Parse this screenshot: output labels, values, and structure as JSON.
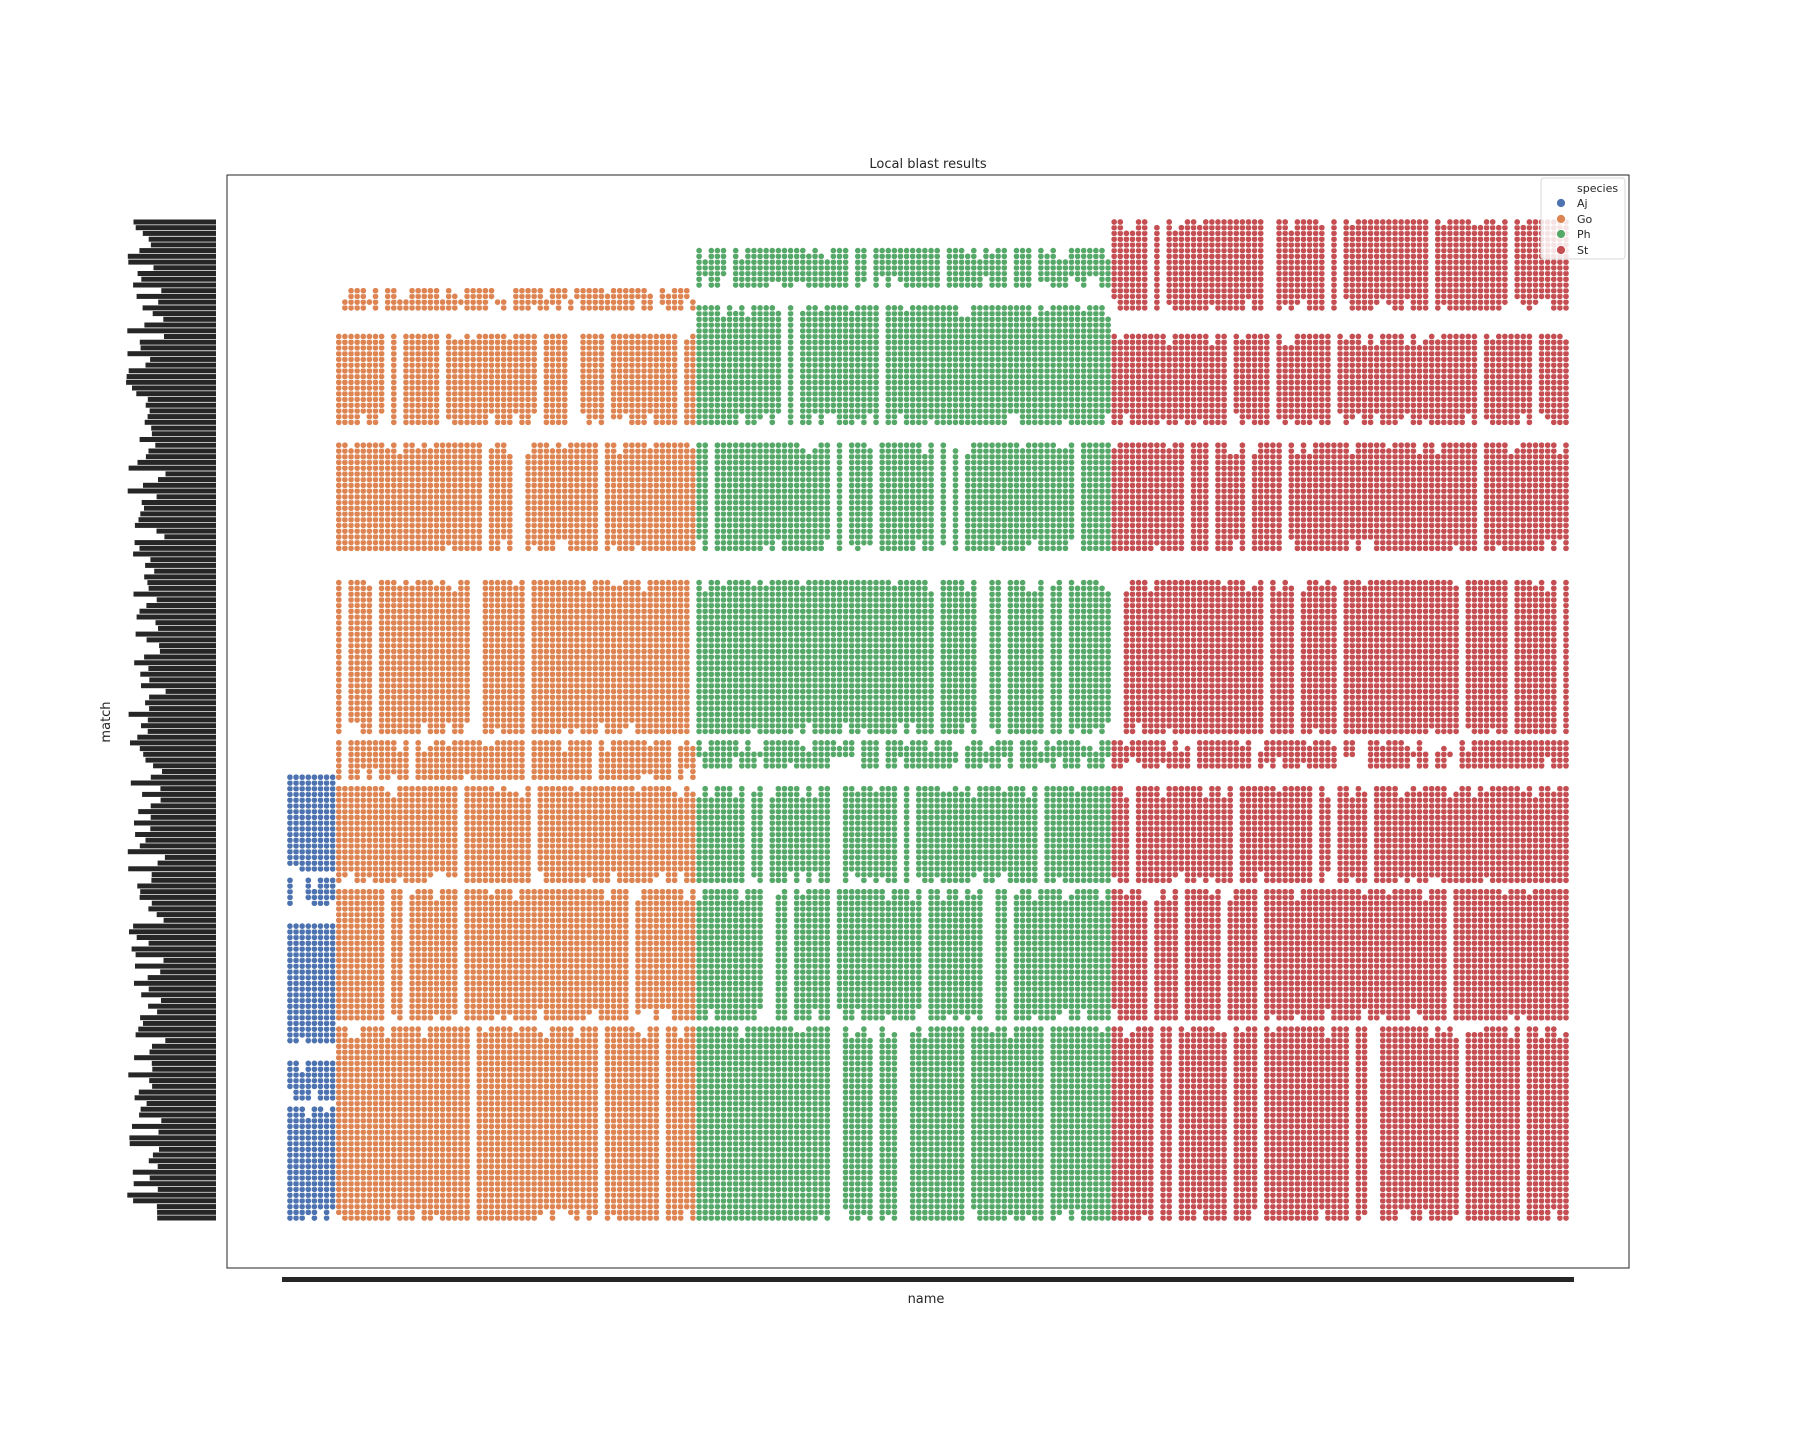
{
  "chart_data": {
    "type": "scatter",
    "title": "Local blast results",
    "xlabel": "name",
    "ylabel": "match",
    "grid": false,
    "legend": {
      "title": "species",
      "placement": "top-right",
      "entries": [
        {
          "name": "Aj",
          "color": "#4c72b0"
        },
        {
          "name": "Go",
          "color": "#dd8452"
        },
        {
          "name": "Ph",
          "color": "#55a868"
        },
        {
          "name": "St",
          "color": "#c44e52"
        }
      ]
    },
    "x_axis": {
      "categorical": true,
      "category_count": 210,
      "tick_labels_legible": false
    },
    "y_axis": {
      "categorical": true,
      "category_count": 175,
      "tick_labels_legible": false
    },
    "series": [
      {
        "name": "Aj",
        "color": "#4c72b0",
        "x_range": [
          1,
          8
        ],
        "y_blocks": [
          [
            1,
            20
          ],
          [
            22,
            28
          ],
          [
            32,
            52
          ],
          [
            56,
            60
          ],
          [
            62,
            78
          ]
        ]
      },
      {
        "name": "Go",
        "color": "#dd8452",
        "x_range": [
          9,
          67
        ],
        "y_blocks": [
          [
            1,
            34
          ],
          [
            36,
            58
          ],
          [
            60,
            76
          ],
          [
            78,
            84
          ],
          [
            86,
            112
          ],
          [
            118,
            136
          ],
          [
            140,
            155
          ],
          [
            160,
            163
          ]
        ]
      },
      {
        "name": "Ph",
        "color": "#55a868",
        "x_range": [
          68,
          135
        ],
        "y_blocks": [
          [
            1,
            34
          ],
          [
            36,
            58
          ],
          [
            60,
            76
          ],
          [
            80,
            84
          ],
          [
            86,
            112
          ],
          [
            118,
            136
          ],
          [
            140,
            160
          ],
          [
            164,
            170
          ]
        ]
      },
      {
        "name": "St",
        "color": "#c44e52",
        "x_range": [
          136,
          210
        ],
        "y_blocks": [
          [
            1,
            34
          ],
          [
            36,
            58
          ],
          [
            60,
            76
          ],
          [
            80,
            84
          ],
          [
            86,
            112
          ],
          [
            118,
            136
          ],
          [
            140,
            155
          ],
          [
            160,
            175
          ]
        ]
      }
    ]
  }
}
